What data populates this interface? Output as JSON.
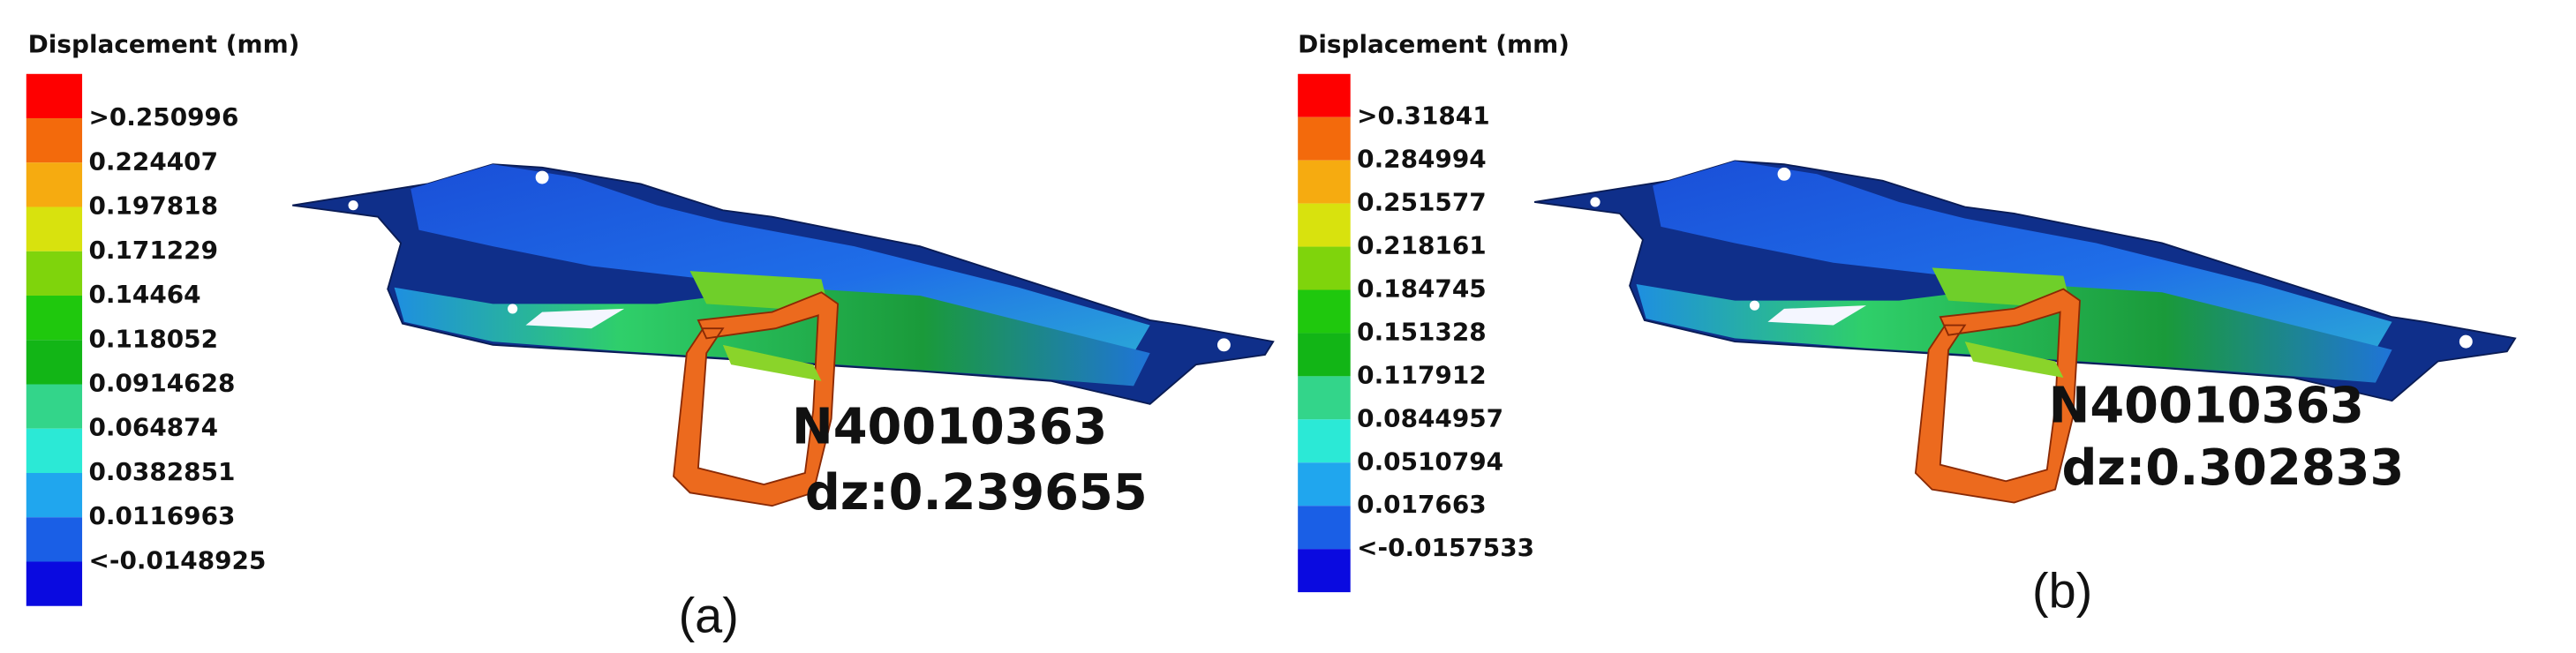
{
  "legend_colors": [
    "#fe0000",
    "#f36a0c",
    "#f6ab10",
    "#d8e20e",
    "#7fd40c",
    "#1fc80d",
    "#12b516",
    "#33d58a",
    "#2be9d6",
    "#20a6ee",
    "#1a5fe6",
    "#0a0ae0"
  ],
  "panels": [
    {
      "legend_title": "Displacement (mm)",
      "legend_labels": [
        ">0.250996",
        "0.224407",
        "0.197818",
        "0.171229",
        "0.14464",
        "0.118052",
        "0.0914628",
        "0.064874",
        "0.0382851",
        "0.0116963",
        "<-0.0148925"
      ],
      "node": "N40010363",
      "dz": "dz:0.239655",
      "caption": "(a)"
    },
    {
      "legend_title": "Displacement (mm)",
      "legend_labels": [
        ">0.31841",
        "0.284994",
        "0.251577",
        "0.218161",
        "0.184745",
        "0.151328",
        "0.117912",
        "0.0844957",
        "0.0510794",
        "0.017663",
        "<-0.0157533"
      ],
      "node": "N40010363",
      "dz": "dz:0.302833",
      "caption": "(b)"
    }
  ]
}
